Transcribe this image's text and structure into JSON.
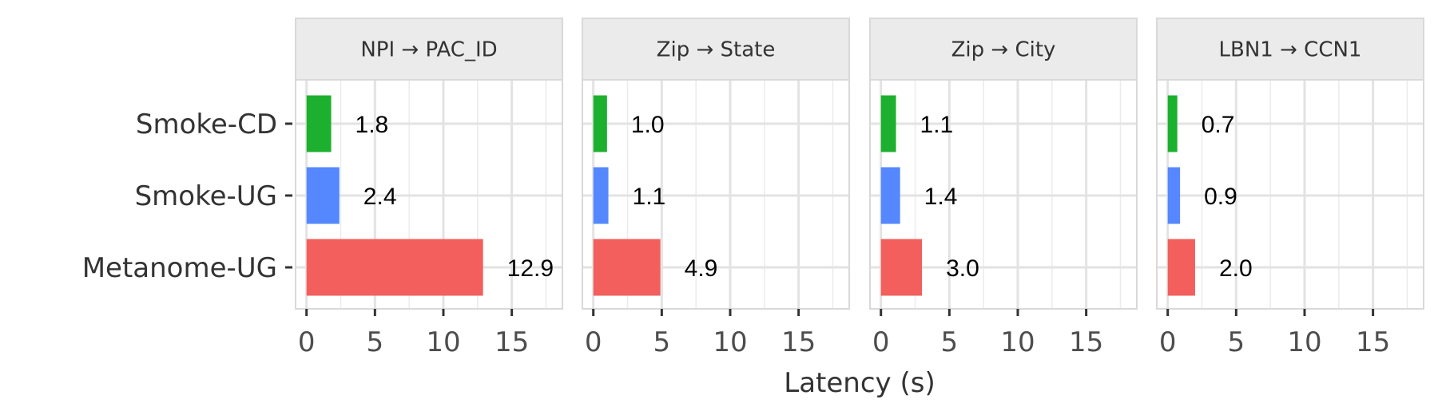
{
  "chart_data": {
    "type": "bar",
    "orientation": "horizontal",
    "facets": [
      "NPI → PAC_ID",
      "Zip → State",
      "Zip → City",
      "LBN1 → CCN1"
    ],
    "categories": [
      "Smoke-CD",
      "Smoke-UG",
      "Metanome-UG"
    ],
    "values": [
      [
        1.8,
        2.4,
        12.9
      ],
      [
        1.0,
        1.1,
        4.9
      ],
      [
        1.1,
        1.4,
        3.0
      ],
      [
        0.7,
        0.9,
        2.0
      ]
    ],
    "value_labels": [
      [
        "1.8",
        "2.4",
        "12.9"
      ],
      [
        "1.0",
        "1.1",
        "4.9"
      ],
      [
        "1.1",
        "1.4",
        "3.0"
      ],
      [
        "0.7",
        "0.9",
        "2.0"
      ]
    ],
    "colors": [
      "#1db02e",
      "#5588ff",
      "#f25f5c"
    ],
    "xlabel": "Latency (s)",
    "xticks": [
      0,
      5,
      10,
      15
    ],
    "xtick_labels": [
      "0",
      "5",
      "10",
      "15"
    ],
    "xlim": [
      -0.8,
      18.7
    ],
    "grid": true
  }
}
